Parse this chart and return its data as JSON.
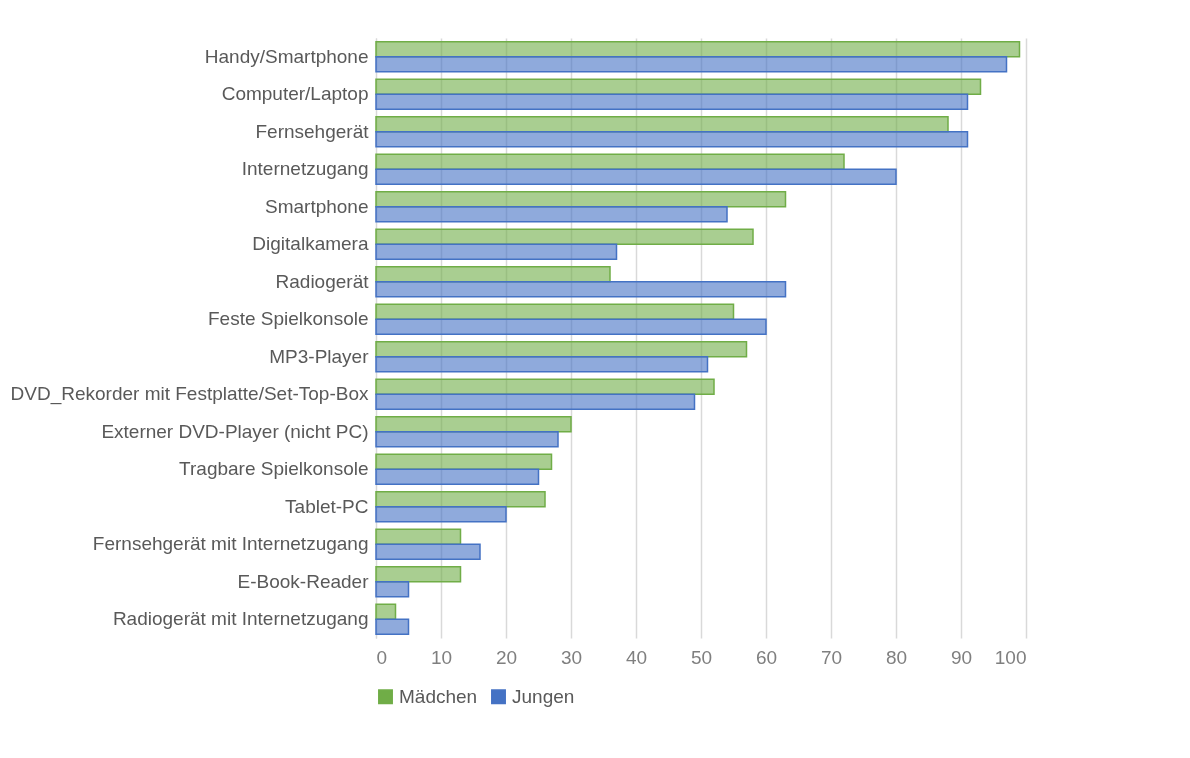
{
  "chart_data": {
    "type": "bar",
    "orientation": "horizontal",
    "categories": [
      "Handy/Smartphone",
      "Computer/Laptop",
      "Fernsehgerät",
      "Internetzugang",
      "Smartphone",
      "Digitalkamera",
      "Radiogerät",
      "Feste Spielkonsole",
      "MP3-Player",
      "DVD_Rekorder mit Festplatte/Set-Top-Box",
      "Externer DVD-Player (nicht PC)",
      "Tragbare Spielkonsole",
      "Tablet-PC",
      "Fernsehgerät mit Internetzugang",
      "E-Book-Reader",
      "Radiogerät mit Internetzugang"
    ],
    "series": [
      {
        "name": "Mädchen",
        "color": "#70ad47",
        "values": [
          99,
          93,
          88,
          72,
          63,
          58,
          36,
          55,
          57,
          52,
          30,
          27,
          26,
          13,
          13,
          3
        ]
      },
      {
        "name": "Jungen",
        "color": "#4472c4",
        "values": [
          97,
          91,
          91,
          80,
          54,
          37,
          63,
          60,
          51,
          49,
          28,
          25,
          20,
          16,
          5,
          5
        ]
      }
    ],
    "xlim": [
      0,
      100
    ],
    "xticks": [
      0,
      10,
      20,
      30,
      40,
      50,
      60,
      70,
      80,
      90,
      100
    ],
    "grid": "x",
    "legend": "bottom"
  }
}
